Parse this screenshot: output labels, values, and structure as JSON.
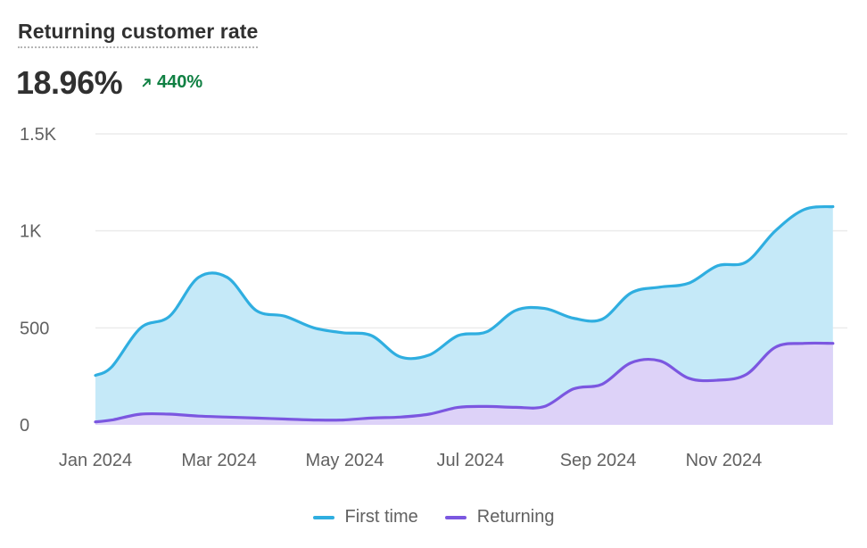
{
  "header": {
    "title": "Returning customer rate",
    "metric": "18.96%",
    "delta": "440%",
    "delta_direction": "up",
    "delta_color": "#108043",
    "delta_icon": "arrow-up-right-icon"
  },
  "chart_data": {
    "type": "area",
    "title": "Returning customer rate",
    "xlabel": "",
    "ylabel": "",
    "ylim": [
      0,
      1500
    ],
    "yticks": [
      0,
      500,
      1000,
      1500
    ],
    "ytick_labels": [
      "0",
      "500",
      "1K",
      "1.5K"
    ],
    "x_range": [
      "2024-01-01",
      "2024-12-31"
    ],
    "xticks": [
      "2024-01-01",
      "2024-03-01",
      "2024-05-01",
      "2024-07-01",
      "2024-09-01",
      "2024-11-01"
    ],
    "xtick_labels": [
      "Jan 2024",
      "Mar 2024",
      "May 2024",
      "Jul 2024",
      "Sep 2024",
      "Nov 2024"
    ],
    "grid": true,
    "legend_position": "bottom-center",
    "series": [
      {
        "name": "First time",
        "color": "#2faee0",
        "fill": "#c5e9f8",
        "x": [
          "2024-01-01",
          "2024-01-09",
          "2024-01-23",
          "2024-02-06",
          "2024-02-20",
          "2024-03-05",
          "2024-03-19",
          "2024-04-02",
          "2024-04-16",
          "2024-04-30",
          "2024-05-14",
          "2024-05-28",
          "2024-06-11",
          "2024-06-25",
          "2024-07-09",
          "2024-07-23",
          "2024-08-06",
          "2024-08-20",
          "2024-09-03",
          "2024-09-17",
          "2024-10-01",
          "2024-10-15",
          "2024-10-29",
          "2024-11-12",
          "2024-11-26",
          "2024-12-10",
          "2024-12-24"
        ],
        "values": [
          255,
          300,
          500,
          560,
          760,
          760,
          590,
          560,
          500,
          475,
          460,
          350,
          360,
          460,
          480,
          590,
          600,
          550,
          545,
          680,
          710,
          730,
          820,
          840,
          1000,
          1110,
          1125
        ]
      },
      {
        "name": "Returning",
        "color": "#7b57e0",
        "fill": "#ddd2f8",
        "x": [
          "2024-01-01",
          "2024-01-09",
          "2024-01-23",
          "2024-02-06",
          "2024-02-20",
          "2024-03-05",
          "2024-03-19",
          "2024-04-02",
          "2024-04-16",
          "2024-04-30",
          "2024-05-14",
          "2024-05-28",
          "2024-06-11",
          "2024-06-25",
          "2024-07-09",
          "2024-07-23",
          "2024-08-06",
          "2024-08-20",
          "2024-09-03",
          "2024-09-17",
          "2024-10-01",
          "2024-10-15",
          "2024-10-29",
          "2024-11-12",
          "2024-11-26",
          "2024-12-10",
          "2024-12-24"
        ],
        "values": [
          15,
          25,
          55,
          55,
          45,
          40,
          35,
          30,
          25,
          25,
          35,
          40,
          55,
          90,
          95,
          90,
          95,
          185,
          210,
          320,
          330,
          240,
          230,
          260,
          400,
          420,
          420
        ]
      }
    ]
  },
  "legend": {
    "items": [
      {
        "label": "First time",
        "color": "#2faee0"
      },
      {
        "label": "Returning",
        "color": "#7b57e0"
      }
    ]
  }
}
